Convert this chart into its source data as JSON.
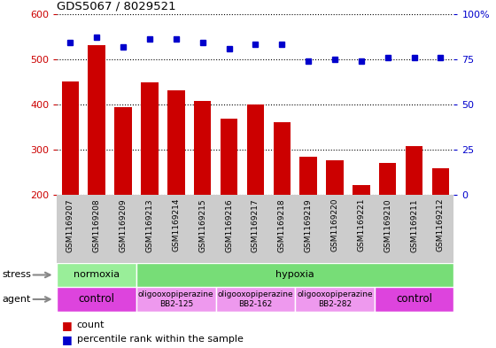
{
  "title": "GDS5067 / 8029521",
  "samples": [
    "GSM1169207",
    "GSM1169208",
    "GSM1169209",
    "GSM1169213",
    "GSM1169214",
    "GSM1169215",
    "GSM1169216",
    "GSM1169217",
    "GSM1169218",
    "GSM1169219",
    "GSM1169220",
    "GSM1169221",
    "GSM1169210",
    "GSM1169211",
    "GSM1169212"
  ],
  "counts": [
    450,
    530,
    393,
    448,
    432,
    408,
    368,
    400,
    360,
    285,
    277,
    222,
    270,
    308,
    258
  ],
  "percentile_ranks": [
    84,
    87,
    82,
    86,
    86,
    84,
    81,
    83,
    83,
    74,
    75,
    74,
    76,
    76,
    76
  ],
  "bar_color": "#cc0000",
  "dot_color": "#0000cc",
  "ylim_left": [
    200,
    600
  ],
  "ylim_right": [
    0,
    100
  ],
  "yticks_left": [
    200,
    300,
    400,
    500,
    600
  ],
  "yticks_right": [
    0,
    25,
    50,
    75,
    100
  ],
  "stress_groups": [
    {
      "label": "normoxia",
      "start": 0,
      "end": 3,
      "color": "#99ee99"
    },
    {
      "label": "hypoxia",
      "start": 3,
      "end": 15,
      "color": "#77dd77"
    }
  ],
  "agent_groups": [
    {
      "label": "control",
      "start": 0,
      "end": 3,
      "color": "#dd44dd",
      "text_size": "large"
    },
    {
      "label": "oligooxopiperazine\nBB2-125",
      "start": 3,
      "end": 6,
      "color": "#ee99ee",
      "text_size": "small"
    },
    {
      "label": "oligooxopiperazine\nBB2-162",
      "start": 6,
      "end": 9,
      "color": "#ee99ee",
      "text_size": "small"
    },
    {
      "label": "oligooxopiperazine\nBB2-282",
      "start": 9,
      "end": 12,
      "color": "#ee99ee",
      "text_size": "small"
    },
    {
      "label": "control",
      "start": 12,
      "end": 15,
      "color": "#dd44dd",
      "text_size": "large"
    }
  ],
  "stress_label": "stress",
  "agent_label": "agent",
  "legend_count_label": "count",
  "legend_pct_label": "percentile rank within the sample",
  "bg_color": "#ffffff",
  "grid_color": "#888888",
  "tick_area_color": "#cccccc"
}
